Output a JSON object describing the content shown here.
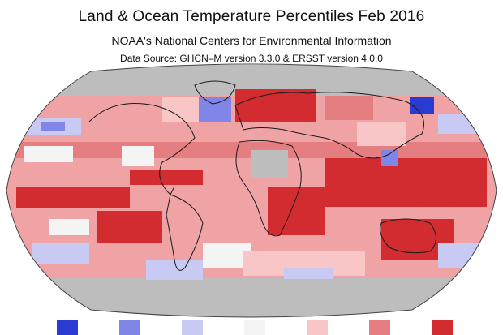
{
  "header": {
    "title": "Land & Ocean Temperature Percentiles Feb 2016",
    "subtitle": "NOAA's National Centers for Environmental Information",
    "source": "Data Source: GHCN–M version 3.3.0 & ERSST version 4.0.0"
  },
  "map": {
    "projection": "robinson",
    "layer": "temperature-percentiles",
    "no-data-color": "#bdbdbd",
    "coastline-color": "#1a1a1a"
  },
  "legend": {
    "colors": [
      "#2a3bd1",
      "#7f86e8",
      "#c9caf3",
      "#f4f4f4",
      "#f8c6c6",
      "#e57e80",
      "#d22c30"
    ]
  }
}
